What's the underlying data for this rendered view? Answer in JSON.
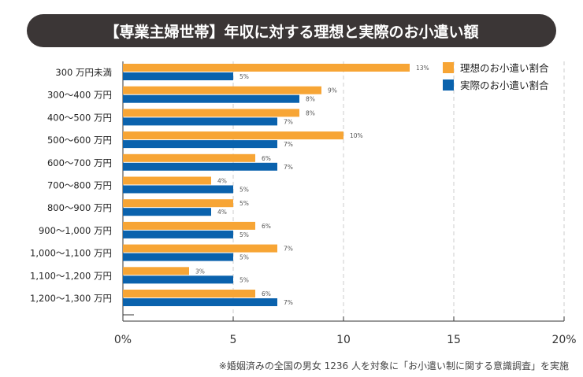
{
  "chart_data": {
    "type": "bar",
    "orientation": "horizontal",
    "title": "【専業主婦世帯】年収に対する理想と実際のお小遣い額",
    "categories": [
      "300 万円未満",
      "300～400 万円",
      "400～500 万円",
      "500～600 万円",
      "600～700 万円",
      "700～800 万円",
      "800～900 万円",
      "900～1,000 万円",
      "1,000～1,100 万円",
      "1,100～1,200 万円",
      "1,200～1,300 万円"
    ],
    "series": [
      {
        "name": "理想のお小遣い割合",
        "color": "#f7a535",
        "values": [
          13,
          9,
          8,
          10,
          6,
          4,
          5,
          6,
          7,
          3,
          6
        ]
      },
      {
        "name": "実際のお小遣い割合",
        "color": "#0a62ad",
        "values": [
          5,
          8,
          7,
          7,
          7,
          5,
          4,
          5,
          5,
          5,
          7
        ]
      }
    ],
    "value_suffix": "%",
    "xlim": [
      0,
      20
    ],
    "xticks": [
      "0%",
      "5",
      "10",
      "15",
      "20%"
    ],
    "grid": "vertical dashed",
    "legend": "top-right",
    "note": "※婚姻済みの全国の男女 1236 人を対象に「お小遣い制に関する意識調査」を実施"
  }
}
